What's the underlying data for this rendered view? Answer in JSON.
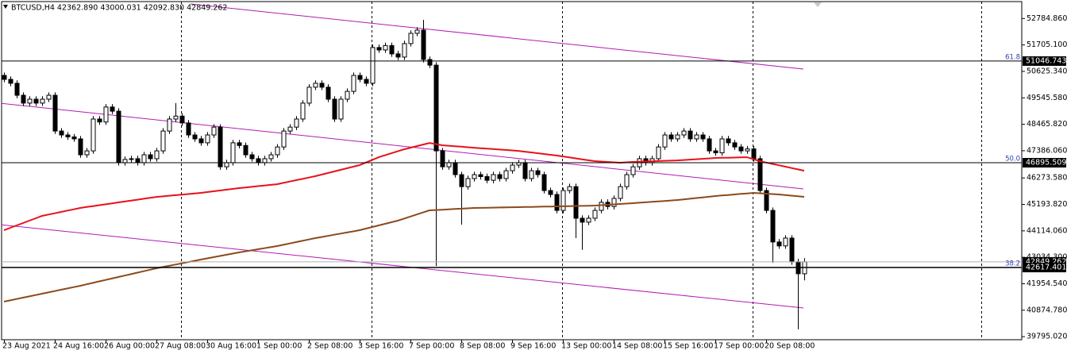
{
  "chart_data": {
    "type": "candlestick",
    "title": "BTCUSD,H4  42362.890 43000.031 42092.830 42849.262",
    "categories": [
      "23 Aug 2021",
      null,
      null,
      null,
      null,
      null,
      null,
      null,
      "24 Aug 16:00",
      null,
      null,
      null,
      null,
      null,
      null,
      null,
      "26 Aug 00:00",
      null,
      null,
      null,
      null,
      null,
      null,
      null,
      "27 Aug 08:00",
      null,
      null,
      null,
      null,
      null,
      null,
      null,
      "30 Aug 16:00",
      null,
      null,
      null,
      null,
      null,
      null,
      null,
      "1 Sep 00:00",
      null,
      null,
      null,
      null,
      null,
      null,
      null,
      "2 Sep 08:00",
      null,
      null,
      null,
      null,
      null,
      null,
      null,
      "3 Sep 16:00",
      null,
      null,
      null,
      null,
      null,
      null,
      null,
      "7 Sep 00:00",
      null,
      null,
      null,
      null,
      null,
      null,
      null,
      "8 Sep 08:00",
      null,
      null,
      null,
      null,
      null,
      null,
      null,
      "9 Sep 16:00",
      null,
      null,
      null,
      null,
      null,
      null,
      null,
      "13 Sep 00:00",
      null,
      null,
      null,
      null,
      null,
      null,
      null,
      "14 Sep 08:00",
      null,
      null,
      null,
      null,
      null,
      null,
      null,
      "15 Sep 16:00",
      null,
      null,
      null,
      null,
      null,
      null,
      null,
      "17 Sep 00:00",
      null,
      null,
      null,
      null,
      null,
      null,
      null,
      "20 Sep 08:00",
      null,
      null,
      null,
      null,
      null,
      null
    ],
    "open": [
      50460,
      50300,
      50140,
      49650,
      49330,
      49490,
      49330,
      49490,
      49650,
      48190,
      48030,
      47950,
      47870,
      47220,
      47380,
      48680,
      48560,
      49170,
      49000,
      46900,
      47030,
      47060,
      46900,
      47220,
      47060,
      47380,
      48190,
      48680,
      48800,
      48520,
      48030,
      47870,
      47710,
      48030,
      48350,
      46730,
      46900,
      47710,
      47600,
      47220,
      47060,
      46900,
      47060,
      47220,
      47540,
      48190,
      48350,
      48680,
      49330,
      49980,
      50140,
      49980,
      49490,
      48680,
      49490,
      49810,
      50460,
      50300,
      50140,
      51600,
      51500,
      51680,
      51340,
      51210,
      51760,
      52180,
      52310,
      51110,
      50880,
      47380,
      46730,
      46900,
      46410,
      45920,
      46250,
      46410,
      46330,
      46180,
      46410,
      46250,
      46570,
      46800,
      46900,
      46250,
      46570,
      46410,
      45760,
      45600,
      44950,
      45760,
      45920,
      44630,
      44470,
      44630,
      44950,
      45280,
      45110,
      45440,
      45920,
      46410,
      46730,
      47060,
      46900,
      47060,
      47540,
      48030,
      47870,
      48030,
      48190,
      47870,
      48030,
      47870,
      47380,
      47300,
      47870,
      47710,
      47540,
      47380,
      47460,
      47060,
      45760,
      44950,
      43660,
      43500,
      43820,
      42850,
      42362.89
    ],
    "high": [
      50580,
      50420,
      50260,
      49770,
      49610,
      49610,
      49610,
      49770,
      49770,
      48310,
      48150,
      48070,
      47990,
      47500,
      48800,
      48800,
      49290,
      49290,
      49120,
      47150,
      47180,
      47180,
      47340,
      47340,
      47500,
      48310,
      48800,
      49330,
      48920,
      48640,
      48150,
      47990,
      48150,
      48470,
      48470,
      47020,
      47830,
      47830,
      47720,
      47340,
      47180,
      47180,
      47340,
      47660,
      48310,
      48470,
      48800,
      49450,
      50100,
      50260,
      50260,
      50100,
      49610,
      49610,
      49930,
      50580,
      50580,
      50420,
      51720,
      51720,
      51800,
      51800,
      51460,
      51880,
      52300,
      52430,
      52730,
      51230,
      51000,
      47500,
      47020,
      47020,
      46530,
      46370,
      46530,
      46530,
      46450,
      46530,
      46530,
      46690,
      46920,
      47020,
      47020,
      46690,
      46690,
      46530,
      45880,
      45720,
      45880,
      46040,
      46040,
      44750,
      44750,
      45070,
      45400,
      45400,
      45560,
      46040,
      46530,
      46850,
      47180,
      47180,
      47180,
      47660,
      48150,
      48150,
      48150,
      48310,
      48310,
      48150,
      48150,
      47990,
      47500,
      47990,
      47990,
      47830,
      47660,
      47580,
      47580,
      47180,
      45880,
      45070,
      43780,
      43940,
      43940,
      42970,
      43000.031
    ],
    "low": [
      50180,
      50020,
      49530,
      49210,
      49210,
      49210,
      49210,
      49370,
      48070,
      47910,
      47830,
      47750,
      47100,
      47100,
      47260,
      48440,
      48440,
      48880,
      46780,
      46780,
      46910,
      46780,
      46780,
      46940,
      46940,
      47260,
      48070,
      48560,
      48400,
      47910,
      47750,
      47590,
      47590,
      47910,
      46610,
      46610,
      46780,
      47480,
      47100,
      46940,
      46780,
      46780,
      46940,
      47100,
      47420,
      48070,
      48230,
      48560,
      49210,
      49860,
      49860,
      49370,
      48560,
      48560,
      49370,
      49690,
      50180,
      50020,
      50020,
      51380,
      51380,
      51220,
      51090,
      51090,
      51640,
      52060,
      50990,
      50760,
      42680,
      46610,
      46610,
      46290,
      44370,
      45800,
      46130,
      46210,
      46060,
      46060,
      46130,
      46130,
      46450,
      46680,
      46130,
      46130,
      46290,
      45640,
      45480,
      44830,
      44830,
      45640,
      43820,
      43340,
      44350,
      44510,
      44830,
      44990,
      44990,
      45320,
      45800,
      46290,
      46610,
      46780,
      46780,
      46940,
      47420,
      47750,
      47750,
      47910,
      47750,
      47750,
      47750,
      47260,
      47180,
      47180,
      47590,
      47420,
      47260,
      47260,
      46940,
      45640,
      44830,
      42810,
      43380,
      43380,
      42730,
      40090,
      42092.83
    ],
    "close": [
      50300,
      50140,
      49650,
      49330,
      49490,
      49330,
      49490,
      49650,
      48190,
      48030,
      47950,
      47870,
      47220,
      47380,
      48680,
      48560,
      49170,
      49000,
      46900,
      47030,
      47060,
      46900,
      47220,
      47060,
      47380,
      48190,
      48680,
      48800,
      48520,
      48030,
      47870,
      47710,
      48030,
      48350,
      46730,
      46900,
      47710,
      47600,
      47220,
      47060,
      46900,
      47060,
      47220,
      47540,
      48190,
      48350,
      48680,
      49330,
      49980,
      50140,
      49980,
      49490,
      48680,
      49490,
      49810,
      50460,
      50300,
      50140,
      51600,
      51500,
      51680,
      51340,
      51210,
      51760,
      52180,
      52310,
      51110,
      50880,
      47380,
      46730,
      46900,
      46410,
      45920,
      46250,
      46410,
      46330,
      46180,
      46410,
      46250,
      46570,
      46800,
      46900,
      46250,
      46570,
      46410,
      45760,
      45600,
      44950,
      45760,
      45920,
      44630,
      44470,
      44630,
      44950,
      45280,
      45110,
      45440,
      45920,
      46410,
      46730,
      47060,
      46900,
      47060,
      47540,
      48030,
      47870,
      48030,
      48190,
      47870,
      48030,
      47870,
      47380,
      47300,
      47870,
      47710,
      47540,
      47380,
      47460,
      47060,
      45760,
      44950,
      43660,
      43500,
      43820,
      42850,
      42362.89,
      42849.262
    ],
    "series": [
      {
        "color": "#e8111a",
        "values": [
          44140,
          44238,
          44335,
          44433,
          44530,
          44628,
          44725,
          44779,
          44833,
          44888,
          44942,
          44996,
          45050,
          45088,
          45125,
          45163,
          45200,
          45238,
          45275,
          45313,
          45350,
          45388,
          45425,
          45463,
          45500,
          45524,
          45547,
          45571,
          45594,
          45618,
          45641,
          45665,
          45698,
          45730,
          45763,
          45795,
          45828,
          45860,
          45887,
          45913,
          45940,
          45967,
          45993,
          46020,
          46074,
          46128,
          46183,
          46237,
          46291,
          46345,
          46410,
          46475,
          46540,
          46605,
          46670,
          46735,
          46800,
          46907,
          47013,
          47120,
          47201,
          47283,
          47364,
          47445,
          47510,
          47575,
          47640,
          47705,
          47658,
          47610,
          47590,
          47570,
          47550,
          47530,
          47510,
          47491,
          47473,
          47454,
          47436,
          47417,
          47399,
          47380,
          47348,
          47317,
          47285,
          47253,
          47222,
          47190,
          47152,
          47113,
          47075,
          47037,
          46998,
          46960,
          46944,
          46928,
          46912,
          46896,
          46913,
          46930,
          46939,
          46947,
          46956,
          46964,
          46973,
          46981,
          46990,
          47007,
          47023,
          47040,
          47057,
          47073,
          47090,
          47096,
          47102,
          47108,
          47114,
          47120,
          47040,
          46960,
          46904,
          46849,
          46793,
          46737,
          46681,
          46626,
          46570
        ]
      },
      {
        "color": "#8b4a1c",
        "values": [
          41224,
          41278,
          41332,
          41386,
          41440,
          41494,
          41548,
          41602,
          41656,
          41710,
          41764,
          41818,
          41872,
          41932,
          41991,
          42051,
          42110,
          42170,
          42229,
          42289,
          42348,
          42408,
          42467,
          42527,
          42586,
          42637,
          42688,
          42739,
          42789,
          42840,
          42891,
          42942,
          42991,
          43039,
          43088,
          43137,
          43185,
          43234,
          43277,
          43320,
          43364,
          43407,
          43450,
          43493,
          43547,
          43601,
          43655,
          43709,
          43763,
          43817,
          43863,
          43910,
          43956,
          44002,
          44048,
          44095,
          44141,
          44206,
          44271,
          44336,
          44400,
          44465,
          44530,
          44614,
          44698,
          44783,
          44867,
          44951,
          44965,
          44979,
          44993,
          45006,
          45020,
          45034,
          45048,
          45053,
          45058,
          45063,
          45068,
          45073,
          45078,
          45083,
          45088,
          45093,
          45098,
          45103,
          45108,
          45113,
          45119,
          45124,
          45130,
          45135,
          45141,
          45146,
          45162,
          45178,
          45195,
          45211,
          45227,
          45243,
          45262,
          45280,
          45299,
          45317,
          45336,
          45354,
          45373,
          45400,
          45427,
          45454,
          45481,
          45508,
          45535,
          45557,
          45578,
          45600,
          45622,
          45643,
          45665,
          45649,
          45633,
          45616,
          45600,
          45576,
          45551,
          45527,
          45502
        ]
      }
    ],
    "bull_color": "#ffffff",
    "bear_color": "#000000",
    "ylim": [
      39670,
      53540
    ],
    "yticks": [
      {
        "value": 52784.86,
        "label": "52784.860"
      },
      {
        "value": 51705.1,
        "label": "51705.100"
      },
      {
        "value": 50625.34,
        "label": "50625.340"
      },
      {
        "value": 49545.58,
        "label": "49545.580"
      },
      {
        "value": 48465.82,
        "label": "48465.820"
      },
      {
        "value": 47386.06,
        "label": "47386.060"
      },
      {
        "value": 46273.58,
        "label": "46273.580"
      },
      {
        "value": 45193.82,
        "label": "45193.820"
      },
      {
        "value": 44114.06,
        "label": "44114.060"
      },
      {
        "value": 43034.3,
        "label": "43034.300"
      },
      {
        "value": 41954.54,
        "label": "41954.540"
      },
      {
        "value": 40874.78,
        "label": "40874.780"
      },
      {
        "value": 39795.02,
        "label": "39795.020"
      }
    ],
    "current_price": 42849.262,
    "levels": [
      {
        "value": 51046.743,
        "fib": "61.8"
      },
      {
        "value": 46895.509,
        "fib": "50.0"
      },
      {
        "value": 42617.401,
        "fib": "38.2"
      }
    ]
  }
}
